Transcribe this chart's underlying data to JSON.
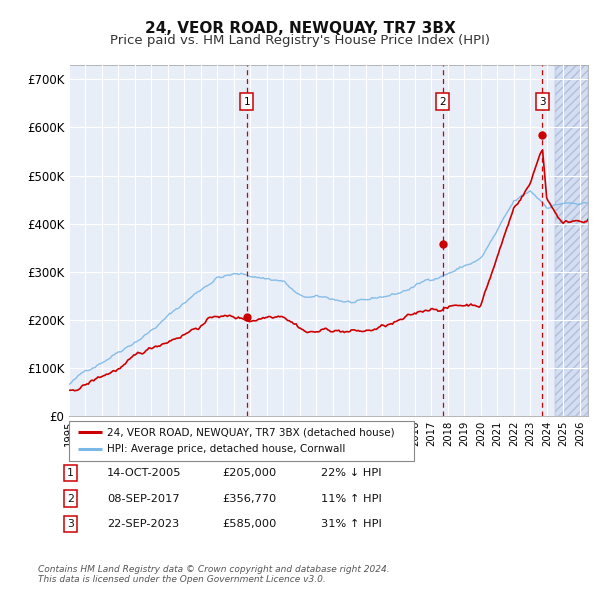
{
  "title": "24, VEOR ROAD, NEWQUAY, TR7 3BX",
  "subtitle": "Price paid vs. HM Land Registry's House Price Index (HPI)",
  "ylim": [
    0,
    730000
  ],
  "yticks": [
    0,
    100000,
    200000,
    300000,
    400000,
    500000,
    600000,
    700000
  ],
  "ytick_labels": [
    "£0",
    "£100K",
    "£200K",
    "£300K",
    "£400K",
    "£500K",
    "£600K",
    "£700K"
  ],
  "xlim_start": 1995.0,
  "xlim_end": 2026.5,
  "hpi_color": "#7ab8e8",
  "price_color": "#cc0000",
  "vline_color": "#cc0000",
  "sale_points": [
    {
      "year": 2005.79,
      "price": 205000,
      "label": "1"
    },
    {
      "year": 2017.69,
      "price": 356770,
      "label": "2"
    },
    {
      "year": 2023.73,
      "price": 585000,
      "label": "3"
    }
  ],
  "legend_entries": [
    {
      "label": "24, VEOR ROAD, NEWQUAY, TR7 3BX (detached house)",
      "color": "#cc0000"
    },
    {
      "label": "HPI: Average price, detached house, Cornwall",
      "color": "#7ab8e8"
    }
  ],
  "table_rows": [
    {
      "num": "1",
      "date": "14-OCT-2005",
      "price": "£205,000",
      "change": "22% ↓ HPI"
    },
    {
      "num": "2",
      "date": "08-SEP-2017",
      "price": "£356,770",
      "change": "11% ↑ HPI"
    },
    {
      "num": "3",
      "date": "22-SEP-2023",
      "price": "£585,000",
      "change": "31% ↑ HPI"
    }
  ],
  "footer": "Contains HM Land Registry data © Crown copyright and database right 2024.\nThis data is licensed under the Open Government Licence v3.0.",
  "background_color": "#e8eef8",
  "hatch_region_start": 2024.5,
  "title_fontsize": 11,
  "subtitle_fontsize": 9.5
}
